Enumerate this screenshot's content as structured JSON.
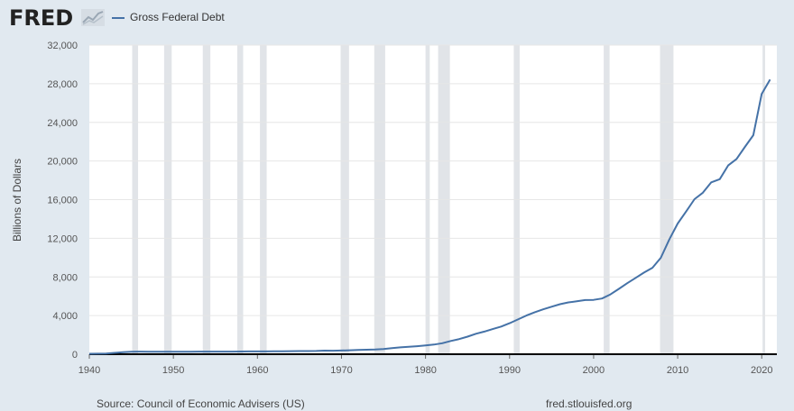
{
  "header": {
    "logo": "FRED",
    "logo_icon": "chart-line-icon",
    "legend_label": "Gross Federal Debt",
    "legend_color": "#4572a7"
  },
  "footer": {
    "source": "Source: Council of Economic Advisers (US)",
    "site": "fred.stlouisfed.org"
  },
  "chart_data": {
    "type": "line",
    "ylabel": "Billions of Dollars",
    "xlim": [
      1940,
      2021.8
    ],
    "ylim": [
      0,
      32000
    ],
    "x_ticks": [
      1940,
      1950,
      1960,
      1970,
      1980,
      1990,
      2000,
      2010,
      2020
    ],
    "y_ticks": [
      0,
      4000,
      8000,
      12000,
      16000,
      20000,
      24000,
      28000,
      32000
    ],
    "y_tick_labels": [
      "0",
      "4,000",
      "8,000",
      "12,000",
      "16,000",
      "20,000",
      "24,000",
      "28,000",
      "32,000"
    ],
    "grid": "horizontal",
    "recessions": [
      [
        1945.1,
        1945.8
      ],
      [
        1948.9,
        1949.8
      ],
      [
        1953.5,
        1954.4
      ],
      [
        1957.6,
        1958.3
      ],
      [
        1960.3,
        1961.1
      ],
      [
        1969.9,
        1970.9
      ],
      [
        1973.9,
        1975.2
      ],
      [
        1980.0,
        1980.5
      ],
      [
        1981.5,
        1982.9
      ],
      [
        1990.5,
        1991.2
      ],
      [
        2001.2,
        2001.9
      ],
      [
        2007.9,
        2009.5
      ],
      [
        2020.1,
        2020.4
      ]
    ],
    "series": [
      {
        "color": "#4572a7",
        "x": [
          1940,
          1941,
          1942,
          1943,
          1944,
          1945,
          1946,
          1947,
          1948,
          1949,
          1950,
          1951,
          1952,
          1953,
          1954,
          1955,
          1956,
          1957,
          1958,
          1959,
          1960,
          1961,
          1962,
          1963,
          1964,
          1965,
          1966,
          1967,
          1968,
          1969,
          1970,
          1971,
          1972,
          1973,
          1974,
          1975,
          1976,
          1977,
          1978,
          1979,
          1980,
          1981,
          1982,
          1983,
          1984,
          1985,
          1986,
          1987,
          1988,
          1989,
          1990,
          1991,
          1992,
          1993,
          1994,
          1995,
          1996,
          1997,
          1998,
          1999,
          2000,
          2001,
          2002,
          2003,
          2004,
          2005,
          2006,
          2007,
          2008,
          2009,
          2010,
          2011,
          2012,
          2013,
          2014,
          2015,
          2016,
          2017,
          2018,
          2019,
          2020,
          2021
        ],
        "values": [
          51,
          58,
          79,
          143,
          204,
          260,
          271,
          257,
          252,
          253,
          257,
          255,
          259,
          266,
          271,
          274,
          273,
          272,
          280,
          287,
          291,
          293,
          303,
          311,
          317,
          322,
          328,
          340,
          369,
          366,
          381,
          408,
          436,
          466,
          484,
          542,
          629,
          706,
          777,
          829,
          909,
          995,
          1137,
          1372,
          1565,
          1817,
          2121,
          2346,
          2601,
          2868,
          3206,
          3598,
          4002,
          4351,
          4643,
          4921,
          5182,
          5369,
          5478,
          5606,
          5629,
          5770,
          6198,
          6760,
          7355,
          7905,
          8451,
          8951,
          9986,
          11876,
          13529,
          14764,
          16051,
          16719,
          17794,
          18120,
          19539,
          20206,
          21462,
          22669,
          26945,
          28429
        ]
      }
    ]
  }
}
